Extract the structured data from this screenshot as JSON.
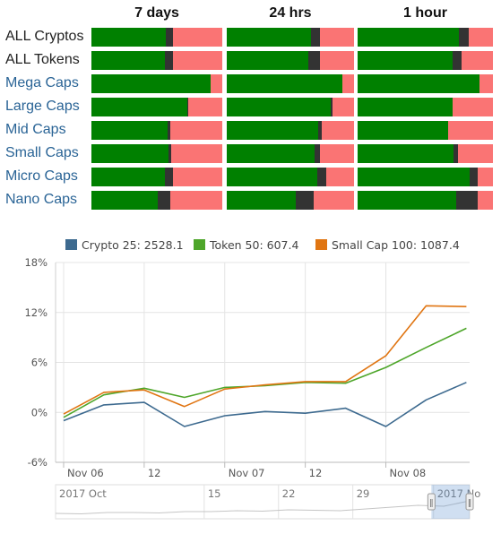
{
  "breadth_table": {
    "columns": [
      "7 days",
      "24 hrs",
      "1 hour"
    ],
    "rows": [
      {
        "label": "ALL Cryptos",
        "style": "plain",
        "bars": [
          [
            0.57,
            0.05
          ],
          [
            0.66,
            0.07
          ],
          [
            0.75,
            0.07
          ]
        ]
      },
      {
        "label": "ALL Tokens",
        "style": "plain",
        "bars": [
          [
            0.56,
            0.06
          ],
          [
            0.64,
            0.09
          ],
          [
            0.7,
            0.07
          ]
        ]
      },
      {
        "label": "Mega Caps",
        "style": "link",
        "bars": [
          [
            0.91,
            0.0
          ],
          [
            0.91,
            0.0
          ],
          [
            0.9,
            0.0
          ]
        ]
      },
      {
        "label": "Large Caps",
        "style": "link",
        "bars": [
          [
            0.73,
            0.01
          ],
          [
            0.82,
            0.01
          ],
          [
            0.7,
            0.0
          ]
        ]
      },
      {
        "label": "Mid Caps",
        "style": "link",
        "bars": [
          [
            0.58,
            0.02
          ],
          [
            0.72,
            0.03
          ],
          [
            0.67,
            0.0
          ]
        ]
      },
      {
        "label": "Small Caps",
        "style": "link",
        "bars": [
          [
            0.59,
            0.02
          ],
          [
            0.69,
            0.04
          ],
          [
            0.71,
            0.03
          ]
        ]
      },
      {
        "label": "Micro Caps",
        "style": "link",
        "bars": [
          [
            0.56,
            0.06
          ],
          [
            0.71,
            0.07
          ],
          [
            0.83,
            0.06
          ]
        ]
      },
      {
        "label": "Nano Caps",
        "style": "link",
        "bars": [
          [
            0.51,
            0.09
          ],
          [
            0.54,
            0.14
          ],
          [
            0.73,
            0.16
          ]
        ]
      }
    ],
    "colors": {
      "green": "#008000",
      "neutral": "#333333",
      "red": "#fa7474"
    }
  },
  "chart_data": {
    "type": "line",
    "series": [
      {
        "name": "Crypto 25",
        "legend_value": "2528.1",
        "color": "#3d6a8f"
      },
      {
        "name": "Token 50",
        "legend_value": "607.4",
        "color": "#4ea62a"
      },
      {
        "name": "Small Cap 100",
        "legend_value": "1087.4",
        "color": "#e07512"
      }
    ],
    "x_points": [
      0,
      0.25,
      0.5,
      0.75,
      1,
      1.25,
      1.5,
      1.75,
      2,
      2.25,
      2.5
    ],
    "y_series": [
      [
        -1.0,
        0.9,
        1.2,
        -1.7,
        -0.4,
        0.1,
        -0.1,
        0.5,
        -1.7,
        1.5,
        3.6
      ],
      [
        -0.6,
        2.1,
        2.9,
        1.8,
        3.0,
        3.2,
        3.6,
        3.5,
        5.4,
        7.8,
        10.1
      ],
      [
        -0.2,
        2.4,
        2.7,
        0.7,
        2.8,
        3.3,
        3.7,
        3.7,
        6.8,
        12.8,
        12.7
      ]
    ],
    "x_ticks": [
      {
        "x": 0,
        "label": "Nov 06"
      },
      {
        "x": 0.5,
        "label": "12"
      },
      {
        "x": 1,
        "label": "Nov 07"
      },
      {
        "x": 1.5,
        "label": "12"
      },
      {
        "x": 2,
        "label": "Nov 08"
      }
    ],
    "xlim": [
      -0.05,
      2.52
    ],
    "ylim": [
      -6,
      18
    ],
    "y_ticks": [
      "-6%",
      "0%",
      "6%",
      "12%",
      "18%"
    ],
    "y_tick_values": [
      -6,
      0,
      6,
      12,
      18
    ],
    "grid": true,
    "navigator": {
      "labels": [
        "2017 Oct",
        "15",
        "22",
        "29",
        "2017 No"
      ],
      "label_days": [
        0,
        14,
        21,
        28,
        35.6
      ],
      "xlim_days": [
        0,
        39
      ],
      "trend": [
        2,
        1.5,
        3,
        3,
        2.5,
        4,
        4,
        5,
        4.5,
        6,
        5.5,
        5,
        7,
        9,
        11,
        10,
        16
      ],
      "selection_days": [
        35.4,
        39
      ],
      "handle_glyph": "‖"
    }
  }
}
